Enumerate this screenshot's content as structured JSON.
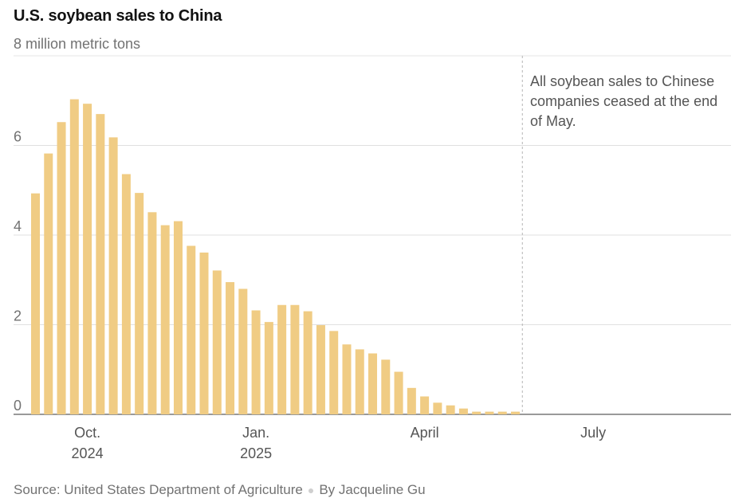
{
  "chart_data": {
    "type": "bar",
    "title": "U.S. soybean sales to China",
    "subtitle": "8 million metric tons",
    "ylim": [
      0,
      8
    ],
    "yticks": [
      0,
      2,
      4,
      6
    ],
    "grid": true,
    "bar_color": "#f0cc84",
    "values": [
      4.93,
      5.82,
      6.52,
      7.03,
      6.93,
      6.7,
      6.18,
      5.36,
      4.94,
      4.51,
      4.22,
      4.31,
      3.76,
      3.61,
      3.21,
      2.95,
      2.8,
      2.32,
      2.06,
      2.44,
      2.44,
      2.3,
      1.99,
      1.86,
      1.56,
      1.45,
      1.36,
      1.22,
      0.95,
      0.59,
      0.4,
      0.26,
      0.2,
      0.13,
      0.06,
      0.06,
      0.06,
      0.06
    ],
    "x_tick_labels": [
      {
        "line1": "Oct.",
        "line2": "2024",
        "bar_index": 4
      },
      {
        "line1": "Jan.",
        "line2": "2025",
        "bar_index": 17
      },
      {
        "line1": "April",
        "line2": "",
        "bar_index": 30
      },
      {
        "line1": "July",
        "line2": "",
        "bar_index": 43
      }
    ],
    "marker_bar_index": 38,
    "annotation": "All soybean sales to Chinese companies ceased at the end of May."
  },
  "footer": {
    "source": "Source: United States Department of Agriculture",
    "byline": "By Jacqueline Gu"
  }
}
